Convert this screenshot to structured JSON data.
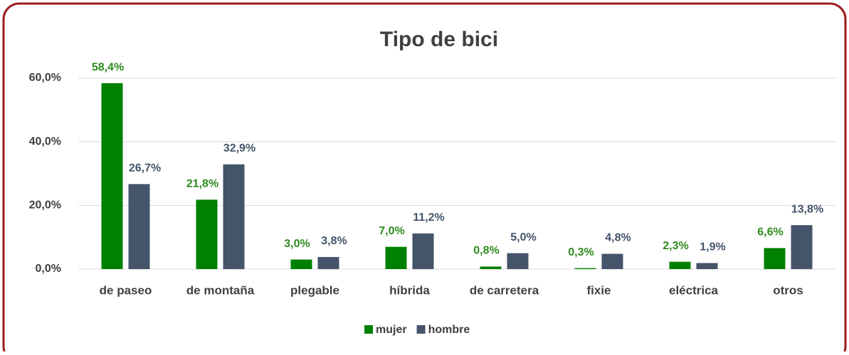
{
  "chart_data": {
    "type": "bar",
    "title": "Tipo de bici",
    "categories": [
      "de paseo",
      "de montaña",
      "plegable",
      "híbrida",
      "de carretera",
      "fixie",
      "eléctrica",
      "otros"
    ],
    "series": [
      {
        "name": "mujer",
        "color": "#008000",
        "label_color": "#2e8b1e",
        "values": [
          58.4,
          21.8,
          3.0,
          7.0,
          0.8,
          0.3,
          2.3,
          6.6
        ],
        "value_labels": [
          "58,4%",
          "21,8%",
          "3,0%",
          "7,0%",
          "0,8%",
          "0,3%",
          "2,3%",
          "6,6%"
        ]
      },
      {
        "name": "hombre",
        "color": "#44546a",
        "label_color": "#44546a",
        "values": [
          26.7,
          32.9,
          3.8,
          11.2,
          5.0,
          4.8,
          1.9,
          13.8
        ],
        "value_labels": [
          "26,7%",
          "32,9%",
          "3,8%",
          "11,2%",
          "5,0%",
          "4,8%",
          "1,9%",
          "13,8%"
        ]
      }
    ],
    "ylim": [
      0,
      60
    ],
    "yticks": [
      {
        "value": 0,
        "label": "0,0%"
      },
      {
        "value": 20,
        "label": "20,0%"
      },
      {
        "value": 40,
        "label": "40,0%"
      },
      {
        "value": 60,
        "label": "60,0%"
      }
    ],
    "grid": true,
    "legend": "bottom"
  }
}
